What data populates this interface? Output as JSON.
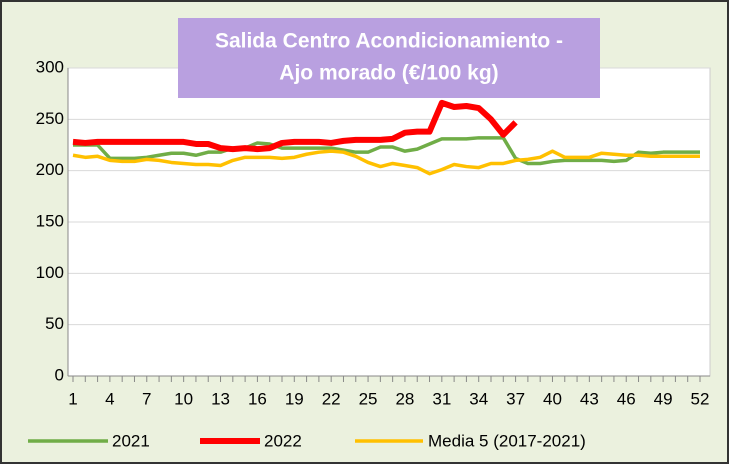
{
  "chart_data": {
    "type": "line",
    "title": [
      "Salida Centro Acondicionamiento -",
      "Ajo morado (€/100 kg)"
    ],
    "categories": [
      1,
      null,
      null,
      4,
      null,
      null,
      7,
      null,
      null,
      10,
      null,
      null,
      13,
      null,
      null,
      16,
      null,
      null,
      19,
      null,
      null,
      22,
      null,
      null,
      25,
      null,
      null,
      28,
      null,
      null,
      31,
      null,
      null,
      34,
      null,
      null,
      37,
      null,
      null,
      40,
      null,
      null,
      43,
      null,
      null,
      46,
      null,
      null,
      49,
      null,
      null,
      52
    ],
    "series": [
      {
        "name": "2021",
        "color": "#70ad47",
        "values": [
          225,
          225,
          225,
          212,
          212,
          212,
          213,
          215,
          217,
          217,
          215,
          218,
          218,
          222,
          222,
          227,
          226,
          222,
          222,
          222,
          222,
          222,
          220,
          218,
          218,
          223,
          223,
          219,
          221,
          226,
          231,
          231,
          231,
          232,
          232,
          232,
          212,
          207,
          207,
          209,
          210,
          210,
          210,
          210,
          209,
          210,
          218,
          217,
          218,
          218,
          218,
          218
        ]
      },
      {
        "name": "2022",
        "color": "#ff0000",
        "values": [
          228,
          227,
          228,
          228,
          228,
          228,
          228,
          228,
          228,
          228,
          226,
          226,
          222,
          221,
          222,
          221,
          222,
          227,
          228,
          228,
          228,
          227,
          229,
          230,
          230,
          230,
          231,
          237,
          238,
          238,
          266,
          262,
          263,
          261,
          250,
          235,
          247,
          null,
          null,
          null,
          null,
          null,
          null,
          null,
          null,
          null,
          null,
          null,
          null,
          null,
          null,
          null
        ]
      },
      {
        "name": "Media 5 (2017-2021)",
        "color": "#ffc000",
        "values": [
          215,
          213,
          214,
          210,
          209,
          209,
          211,
          210,
          208,
          207,
          206,
          206,
          205,
          210,
          213,
          213,
          213,
          212,
          213,
          216,
          218,
          219,
          218,
          214,
          208,
          204,
          207,
          205,
          203,
          197,
          201,
          206,
          204,
          203,
          207,
          207,
          210,
          211,
          213,
          219,
          213,
          213,
          213,
          217,
          216,
          215,
          215,
          214,
          214,
          214,
          214,
          214
        ]
      }
    ],
    "ylim": [
      0,
      300
    ],
    "yticks": [
      0,
      50,
      100,
      150,
      200,
      250,
      300
    ],
    "grid": true,
    "legend": "bottom"
  }
}
